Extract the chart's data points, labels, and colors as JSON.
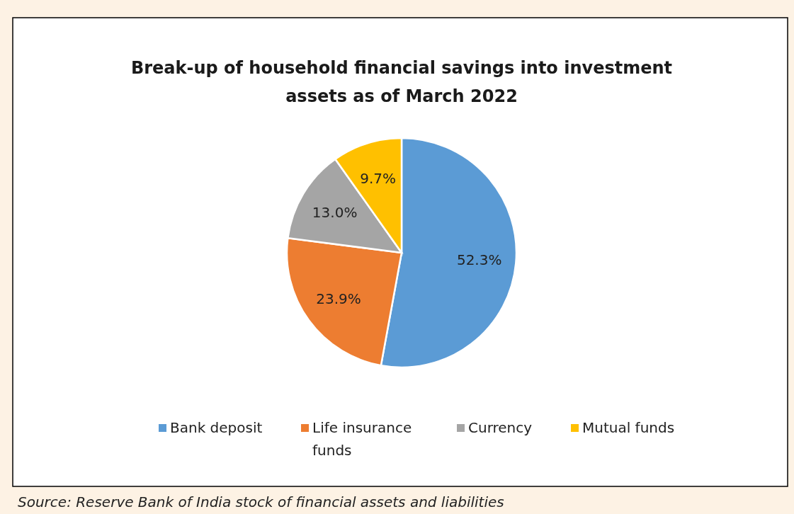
{
  "chart_data": {
    "type": "pie",
    "title": "Break-up of household financial savings into investment\nassets as of March 2022",
    "categories": [
      "Bank deposit",
      "Life insurance funds",
      "Currency",
      "Mutual funds"
    ],
    "values": [
      52.3,
      23.9,
      13.0,
      9.7
    ],
    "value_labels": [
      "52.3%",
      "23.9%",
      "13.0%",
      "9.7%"
    ],
    "colors": [
      "#5b9bd5",
      "#ed7d31",
      "#a5a5a5",
      "#ffc000"
    ],
    "legend": "bottom",
    "annotations": [
      "Source: Reserve Bank of India stock of financial assets and liabilities"
    ]
  }
}
